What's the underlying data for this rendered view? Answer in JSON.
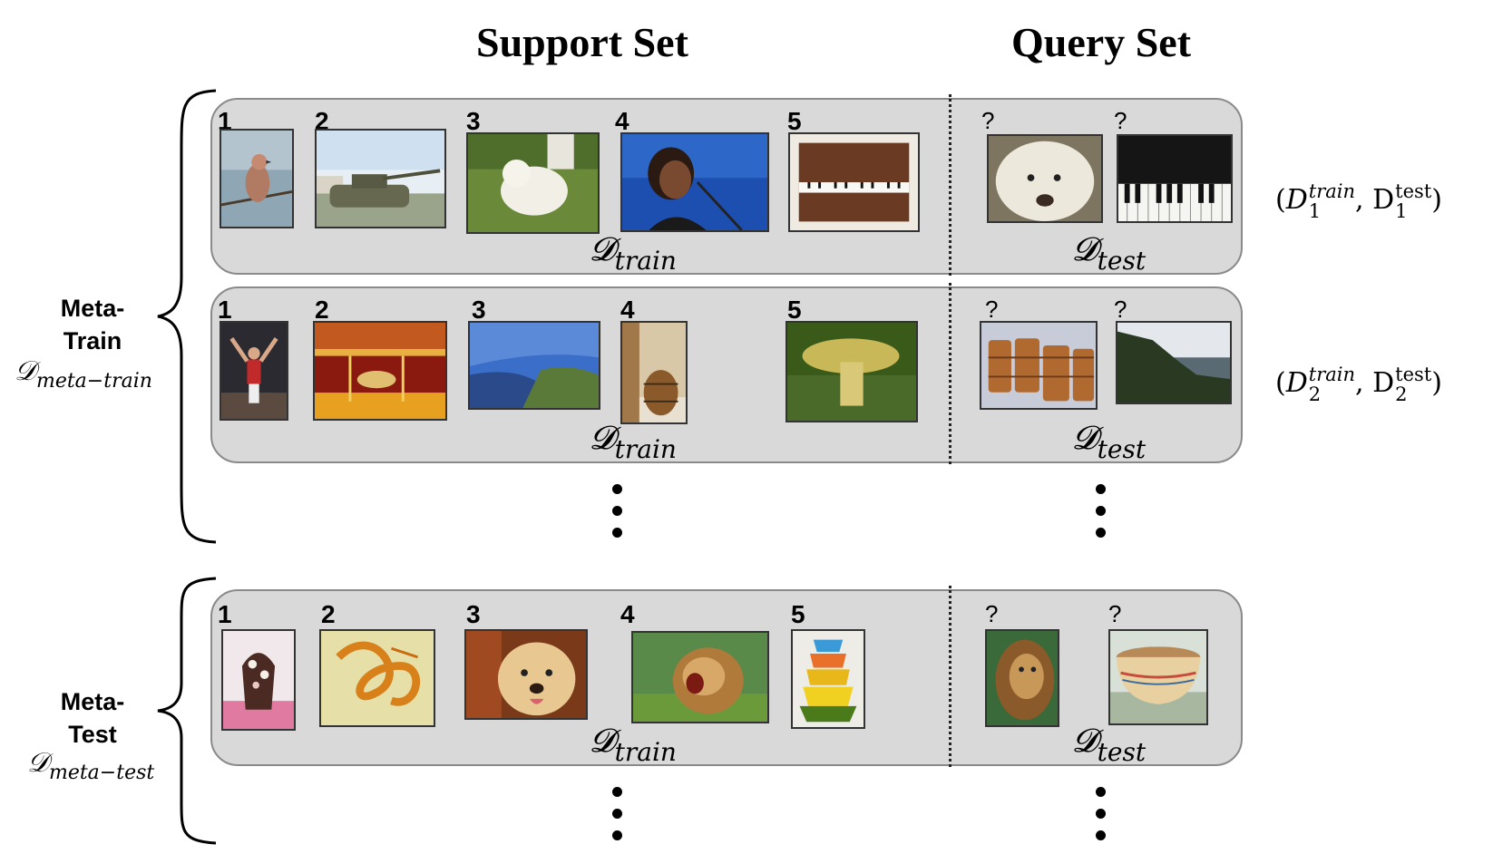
{
  "headers": {
    "support": "Support Set",
    "query": "Query Set"
  },
  "sections": [
    {
      "title_line1": "Meta-",
      "title_line2": "Train",
      "math_main": "𝒟",
      "math_sub": "meta−train"
    },
    {
      "title_line1": "Meta-",
      "title_line2": "Test",
      "math_main": "𝒟",
      "math_sub": "meta−test"
    }
  ],
  "tasks": [
    {
      "support_numbers": [
        "1",
        "2",
        "3",
        "4",
        "5"
      ],
      "support_images": [
        "bird",
        "tank",
        "white-dog",
        "singer",
        "piano"
      ],
      "query_marks": [
        "?",
        "?"
      ],
      "query_images": [
        "white-dog-closeup",
        "piano-keys"
      ],
      "train_label_main": "𝓓",
      "train_label_sub": "train",
      "test_label_main": "𝓓",
      "test_label_sub": "test",
      "pair": {
        "open": "(",
        "d_train": "D",
        "sup_train": "train",
        "sub_train": "1",
        "comma": ", ",
        "d_test": "D",
        "sup_test": "test",
        "sub_test": "1",
        "close": ")"
      }
    },
    {
      "support_numbers": [
        "1",
        "2",
        "3",
        "4",
        "5"
      ],
      "support_images": [
        "gymnast",
        "carousel",
        "cliffs",
        "barrel",
        "mushroom"
      ],
      "query_marks": [
        "?",
        "?"
      ],
      "query_images": [
        "barrels",
        "sea-cliffs"
      ],
      "train_label_main": "𝓓",
      "train_label_sub": "train",
      "test_label_main": "𝓓",
      "test_label_sub": "test",
      "pair": {
        "open": "(",
        "d_train": "D",
        "sup_train": "train",
        "sub_train": "2",
        "comma": ", ",
        "d_test": "D",
        "sup_test": "test",
        "sub_test": "2",
        "close": ")"
      }
    },
    {
      "support_numbers": [
        "1",
        "2",
        "3",
        "4",
        "5"
      ],
      "support_images": [
        "dessert",
        "noodle",
        "golden-dog",
        "roaring-lion",
        "bowls"
      ],
      "query_marks": [
        "?",
        "?"
      ],
      "query_images": [
        "lion",
        "bowl"
      ],
      "train_label_main": "𝓓",
      "train_label_sub": "train",
      "test_label_main": "𝓓",
      "test_label_sub": "test"
    }
  ]
}
